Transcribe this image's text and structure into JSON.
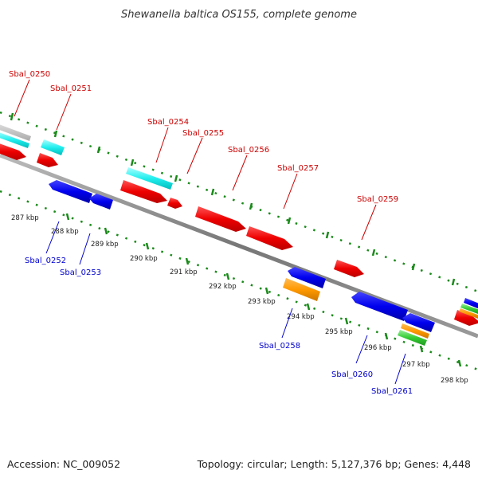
{
  "title": "Shewanella baltica OS155, complete genome",
  "accession": "Accession: NC_009052",
  "summary": "Topology: circular; Length: 5,127,376 bp; Genes: 4,448",
  "colors": {
    "forward_label": "#cc0000",
    "reverse_label": "#0000cc",
    "tick": "#1a8a1a",
    "backbone": "#808080"
  },
  "kbp_labels": [
    "287 kbp",
    "288 kbp",
    "289 kbp",
    "290 kbp",
    "291 kbp",
    "292 kbp",
    "293 kbp",
    "294 kbp",
    "295 kbp",
    "296 kbp",
    "297 kbp",
    "298 kbp"
  ],
  "forward_genes": [
    {
      "name": "Sbal_0250"
    },
    {
      "name": "Sbal_0251"
    },
    {
      "name": "Sbal_0254"
    },
    {
      "name": "Sbal_0255"
    },
    {
      "name": "Sbal_0256"
    },
    {
      "name": "Sbal_0257"
    },
    {
      "name": "Sbal_0259"
    }
  ],
  "reverse_genes": [
    {
      "name": "Sbal_0252"
    },
    {
      "name": "Sbal_0253"
    },
    {
      "name": "Sbal_0258"
    },
    {
      "name": "Sbal_0260"
    },
    {
      "name": "Sbal_0261"
    }
  ]
}
